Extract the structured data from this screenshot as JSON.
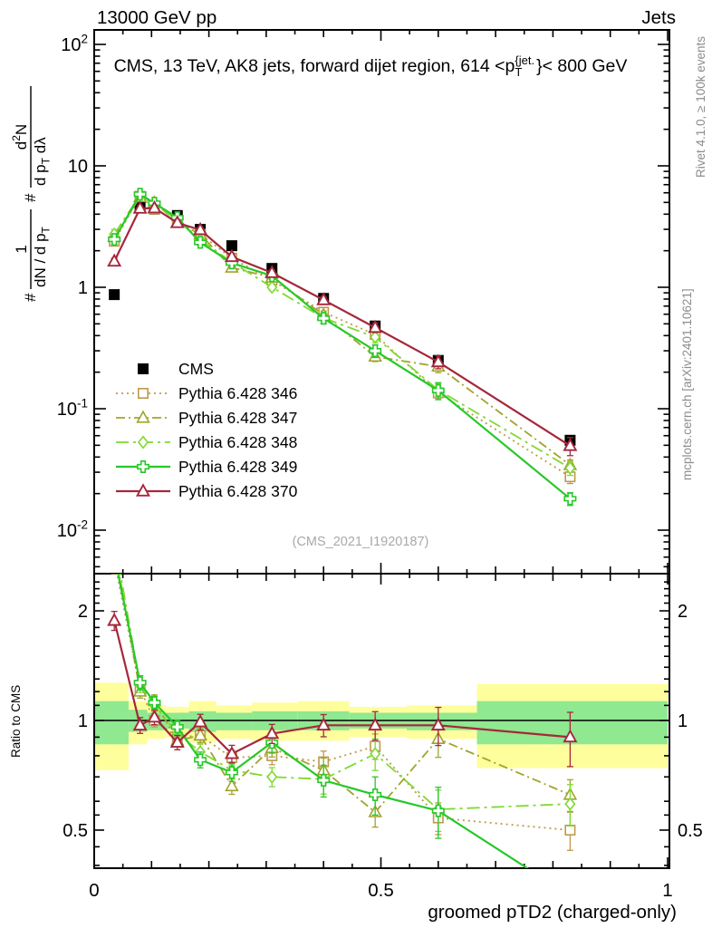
{
  "figure": {
    "top_left_label": "13000 GeV pp",
    "top_right_label": "Jets",
    "main_title_parts": [
      {
        "t": "CMS, 13 TeV, AK8 jets, forward dijet region, 614 <p"
      },
      {
        "t": "{jet.",
        "sup": true
      },
      {
        "t": "T",
        "sub": true,
        "stack": true
      },
      {
        "t": "}< 800 GeV"
      }
    ],
    "watermark": "(CMS_2021_I1920187)",
    "right_side_texts": {
      "rivet": "Rivet 4.1.0, ≥ 100k events",
      "mcplots": "mcplots.cern.ch [arXiv:2401.10621]"
    },
    "ylabel": {
      "hash": "#",
      "frac1": {
        "num": [
          {
            "t": "1"
          }
        ],
        "den": [
          {
            "t": "dN / d p"
          },
          {
            "t": "T",
            "sub": true
          }
        ]
      },
      "frac2": {
        "num": [
          {
            "t": "d"
          },
          {
            "t": "2",
            "sup": true
          },
          {
            "t": "N"
          }
        ],
        "den": [
          {
            "t": "d p"
          },
          {
            "t": "T",
            "sub": true
          },
          {
            "t": " dλ"
          }
        ]
      }
    },
    "ratio_ylabel": "Ratio to CMS",
    "xlabel": "groomed pTD2 (charged-only)"
  },
  "axes": {
    "x_axis": {
      "major": [
        0,
        0.5,
        1
      ],
      "major_labels": [
        "0",
        "0.5",
        "1"
      ],
      "medium": [
        0.1,
        0.2,
        0.3,
        0.4,
        0.6,
        0.7,
        0.8,
        0.9
      ],
      "minor": [
        0.05,
        0.15,
        0.25,
        0.35,
        0.45,
        0.55,
        0.65,
        0.75,
        0.85,
        0.95
      ]
    },
    "main_y": {
      "decades": [
        {
          "v": 100,
          "base": "10",
          "exp": "2"
        },
        {
          "v": 10,
          "base": "10"
        },
        {
          "v": 1,
          "base": "1"
        },
        {
          "v": 0.1,
          "base": "10",
          "exp": "-1"
        },
        {
          "v": 0.01,
          "base": "10",
          "exp": "-2"
        }
      ]
    },
    "ratio_y": {
      "major": [
        {
          "v": 2,
          "label": "2"
        },
        {
          "v": 1,
          "label": "1"
        },
        {
          "v": 0.5,
          "label": "0.5"
        }
      ],
      "minor": [
        0.4,
        0.45,
        0.55,
        0.6,
        0.7,
        0.8,
        0.9,
        1.1,
        1.2,
        1.3,
        1.4,
        1.5,
        1.6,
        1.7,
        1.8,
        1.9,
        2.1,
        2.2,
        2.3,
        2.4
      ]
    }
  },
  "legend": {
    "cms_label": "CMS",
    "entries": [
      "CMS",
      "Pythia 6.428 346",
      "Pythia 6.428 347",
      "Pythia 6.428 348",
      "Pythia 6.428 349",
      "Pythia 6.428 370"
    ]
  },
  "colors": {
    "cms": "#000000",
    "p346": "#BD9A4C",
    "p347": "#A0A42C",
    "p348": "#7FD92F",
    "p349": "#28C828",
    "p370": "#A5273C",
    "band_yellow": "#FFFE9D",
    "band_green": "#90E890",
    "gray_text": "#8c8c8c",
    "watermark": "#a9a9a9"
  },
  "chart_data": {
    "type": "line",
    "title": "CMS, 13 TeV, AK8 jets, forward dijet region, 614 < pT(jet) < 800 GeV",
    "xlabel": "groomed pTD2 (charged-only)",
    "ylabel_main": "# 1/(dN/dpT) # d2N/(dpT dlambda)",
    "ylabel_ratio": "Ratio to CMS",
    "xlim": [
      0,
      1
    ],
    "main_ylim_log10": [
      -2.36,
      2.12
    ],
    "ratio_ylim": [
      0.393,
      2.53
    ],
    "x": [
      0.035,
      0.08,
      0.105,
      0.145,
      0.185,
      0.24,
      0.31,
      0.4,
      0.49,
      0.6,
      0.83
    ],
    "bin_edges": [
      0.0,
      0.06,
      0.0925,
      0.125,
      0.165,
      0.2125,
      0.275,
      0.355,
      0.445,
      0.545,
      0.6675,
      1.0
    ],
    "cms": {
      "name": "CMS",
      "marker": "filled-square",
      "values": [
        0.87,
        4.6,
        4.4,
        3.9,
        3.0,
        2.2,
        1.43,
        0.81,
        0.48,
        0.25,
        0.055
      ],
      "rel_err": [
        0.05,
        0.02,
        0.02,
        0.02,
        0.02,
        0.02,
        0.025,
        0.03,
        0.035,
        0.04,
        0.06
      ]
    },
    "series": [
      {
        "name": "Pythia 6.428 346",
        "color_key": "p346",
        "marker": "square",
        "dash": "2,4",
        "ratio_to_cms": [
          2.75,
          1.22,
          1.0,
          0.9,
          0.91,
          0.79,
          0.8,
          0.77,
          0.85,
          0.54,
          0.5
        ],
        "rel_err": [
          0.08,
          0.04,
          0.04,
          0.04,
          0.045,
          0.05,
          0.055,
          0.07,
          0.08,
          0.1,
          0.12
        ]
      },
      {
        "name": "Pythia 6.428 347",
        "color_key": "p347",
        "marker": "triangle",
        "dash": "10,4,2,4",
        "ratio_to_cms": [
          3.0,
          1.2,
          1.13,
          0.88,
          0.91,
          0.66,
          0.84,
          0.73,
          0.56,
          0.89,
          0.625
        ],
        "rel_err": [
          0.08,
          0.04,
          0.04,
          0.04,
          0.045,
          0.05,
          0.055,
          0.08,
          0.09,
          0.11,
          0.1
        ]
      },
      {
        "name": "Pythia 6.428 348",
        "color_key": "p348",
        "marker": "diamond",
        "dash": "14,5,3,5",
        "ratio_to_cms": [
          3.15,
          1.25,
          1.1,
          0.92,
          0.82,
          0.73,
          0.7,
          0.69,
          0.81,
          0.57,
          0.59
        ],
        "rel_err": [
          0.09,
          0.045,
          0.04,
          0.045,
          0.05,
          0.055,
          0.06,
          0.09,
          0.1,
          0.13,
          0.13
        ]
      },
      {
        "name": "Pythia 6.428 349",
        "color_key": "p349",
        "marker": "plus",
        "dash": null,
        "ratio_to_cms": [
          2.85,
          1.27,
          1.12,
          0.96,
          0.78,
          0.72,
          0.87,
          0.685,
          0.625,
          0.565,
          0.33
        ],
        "rel_err": [
          0.09,
          0.045,
          0.04,
          0.045,
          0.05,
          0.055,
          0.065,
          0.1,
          0.12,
          0.16,
          0.12
        ]
      },
      {
        "name": "Pythia 6.428 370",
        "color_key": "p370",
        "marker": "triangle",
        "dash": null,
        "ratio_to_cms": [
          1.88,
          0.97,
          1.02,
          0.87,
          0.99,
          0.81,
          0.92,
          0.97,
          0.97,
          0.97,
          0.9
        ],
        "rel_err": [
          0.06,
          0.05,
          0.045,
          0.045,
          0.05,
          0.055,
          0.06,
          0.07,
          0.09,
          0.12,
          0.17
        ]
      }
    ],
    "bands": {
      "yellow": [
        [
          0.73,
          1.27
        ],
        [
          0.86,
          1.13
        ],
        [
          0.89,
          1.1
        ],
        [
          0.9,
          1.09
        ],
        [
          0.87,
          1.13
        ],
        [
          0.89,
          1.1
        ],
        [
          0.88,
          1.12
        ],
        [
          0.88,
          1.13
        ],
        [
          0.9,
          1.09
        ],
        [
          0.89,
          1.1
        ],
        [
          0.74,
          1.26
        ]
      ],
      "green": [
        [
          0.86,
          1.13
        ],
        [
          0.93,
          1.07
        ],
        [
          0.94,
          1.05
        ],
        [
          0.95,
          1.05
        ],
        [
          0.93,
          1.06
        ],
        [
          0.94,
          1.05
        ],
        [
          0.94,
          1.06
        ],
        [
          0.94,
          1.06
        ],
        [
          0.95,
          1.05
        ],
        [
          0.94,
          1.05
        ],
        [
          0.86,
          1.13
        ]
      ]
    },
    "ratio_reference_line": 1.0,
    "legend_position": "middle-left",
    "grid": false
  }
}
